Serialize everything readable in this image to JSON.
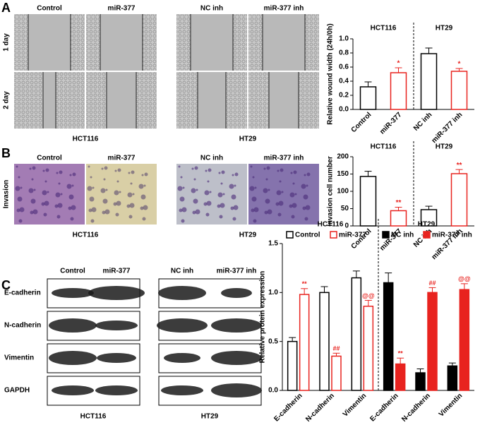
{
  "panels": {
    "A": {
      "letter": "A",
      "columns": [
        "Control",
        "miR-377",
        "NC inh",
        "miR-377 inh"
      ],
      "rows": [
        "1 day",
        "2 day"
      ],
      "captions": [
        "HCT116",
        "HT29"
      ]
    },
    "B": {
      "letter": "B",
      "columns": [
        "Control",
        "miR-377",
        "NC inh",
        "miR-377 inh"
      ],
      "rows": [
        "Invasion"
      ],
      "captions": [
        "HCT116",
        "HT29"
      ]
    },
    "C": {
      "letter": "C",
      "columns": [
        "Control",
        "miR-377",
        "NC inh",
        "miR-377 inh"
      ],
      "rows": [
        "E-cadherin",
        "N-cadherin",
        "Vimentin",
        "GAPDH"
      ],
      "captions": [
        "HCT116",
        "HT29"
      ]
    }
  },
  "chart_data": [
    {
      "type": "bar",
      "y_label": "Relative wound width (24h/0h)",
      "groups": [
        "HCT116",
        "HT29"
      ],
      "categories": [
        "Control",
        "miR-377",
        "NC inh",
        "miR-377 inh"
      ],
      "values": [
        0.32,
        0.52,
        0.79,
        0.54
      ],
      "errors": [
        0.07,
        0.07,
        0.08,
        0.04
      ],
      "colors": [
        "#000000",
        "#e8231f",
        "#000000",
        "#e8231f"
      ],
      "significance": [
        null,
        "*",
        null,
        "*"
      ],
      "ylim": [
        0,
        1.0
      ],
      "yticks": [
        {
          "value": 0,
          "label": "0.0"
        },
        0.2,
        0.4,
        0.6,
        0.8,
        {
          "value": 1,
          "label": "1.0"
        }
      ]
    },
    {
      "type": "bar",
      "y_label": "Invasion cell number",
      "groups": [
        "HCT116",
        "HT29"
      ],
      "categories": [
        "Control",
        "miR-377",
        "NC inh",
        "miR-377 inh"
      ],
      "values": [
        143,
        44,
        47,
        151
      ],
      "errors": [
        15,
        10,
        10,
        12
      ],
      "colors": [
        "#000000",
        "#e8231f",
        "#000000",
        "#e8231f"
      ],
      "significance": [
        null,
        "**",
        null,
        "**"
      ],
      "ylim": [
        0,
        200
      ],
      "yticks": [
        0,
        50,
        100,
        150,
        200
      ]
    },
    {
      "type": "grouped_bar",
      "y_label": "Relative protein expression",
      "groups": [
        "HCT116",
        "HT29"
      ],
      "categories": [
        "E-cadherin",
        "N-cadherin",
        "Vimentin",
        "E-cadherin",
        "N-cadherin",
        "Vimentin"
      ],
      "series": [
        {
          "name": "Control",
          "color": "#000000",
          "filled": false,
          "values": [
            0.5,
            1.0,
            1.15,
            null,
            null,
            null
          ],
          "errors": [
            0.04,
            0.06,
            0.07,
            null,
            null,
            null
          ],
          "significance": [
            null,
            null,
            null,
            null,
            null,
            null
          ]
        },
        {
          "name": "miR-377",
          "color": "#e8231f",
          "filled": false,
          "values": [
            0.98,
            0.35,
            0.86,
            null,
            null,
            null
          ],
          "errors": [
            0.06,
            0.03,
            0.06,
            null,
            null,
            null
          ],
          "significance": [
            "**",
            "##",
            "@@",
            null,
            null,
            null
          ]
        },
        {
          "name": "NC inh",
          "color": "#000000",
          "filled": true,
          "values": [
            null,
            null,
            null,
            1.1,
            0.18,
            0.25
          ],
          "errors": [
            null,
            null,
            null,
            0.1,
            0.04,
            0.03
          ],
          "significance": [
            null,
            null,
            null,
            null,
            null,
            null
          ]
        },
        {
          "name": "miR-377 inh",
          "color": "#e8231f",
          "filled": true,
          "values": [
            null,
            null,
            null,
            0.27,
            1.0,
            1.03
          ],
          "errors": [
            null,
            null,
            null,
            0.06,
            0.05,
            0.06
          ],
          "significance": [
            null,
            null,
            null,
            "**",
            "##",
            "@@"
          ]
        }
      ],
      "ylim": [
        0,
        1.5
      ],
      "yticks": [
        {
          "value": 0,
          "label": "0.0"
        },
        0.5,
        {
          "value": 1,
          "label": "1.0"
        },
        1.5
      ]
    }
  ]
}
